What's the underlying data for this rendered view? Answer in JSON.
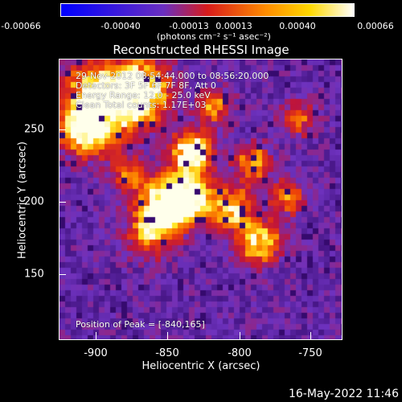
{
  "colorbar": {
    "ticks": [
      "-0.00066",
      "-0.00040",
      "-0.00013",
      "0.00013",
      "0.00040",
      "0.00066"
    ],
    "units": "(photons cm⁻² s⁻¹ asec⁻²)"
  },
  "title": "Reconstructed RHESSI Image",
  "info": {
    "time_range": "29-Nov-2012 08:54:44.000 to 08:56:20.000",
    "detectors": "Detectors: 3F 5F 6F 7F 8F, Att 0",
    "energy": "Energy Range: 12.0 - 25.0 keV",
    "method": "Clean     Total counts: 1.17E+03",
    "peak": "Position of Peak = [-840,165]"
  },
  "axes": {
    "xlabel": "Heliocentric X (arcsec)",
    "ylabel": "Heliocentric Y (arcsec)",
    "xticks": [
      "-900",
      "-850",
      "-800",
      "-750"
    ],
    "yticks": [
      "250",
      "200",
      "150"
    ],
    "xlim": [
      -923,
      -730
    ],
    "ylim": [
      100,
      290
    ]
  },
  "footer": {
    "date": "16-May-2022 11:46"
  },
  "colors": {
    "low": "#0000ff",
    "mid": "#7a40d0",
    "high": "#ffffff"
  }
}
